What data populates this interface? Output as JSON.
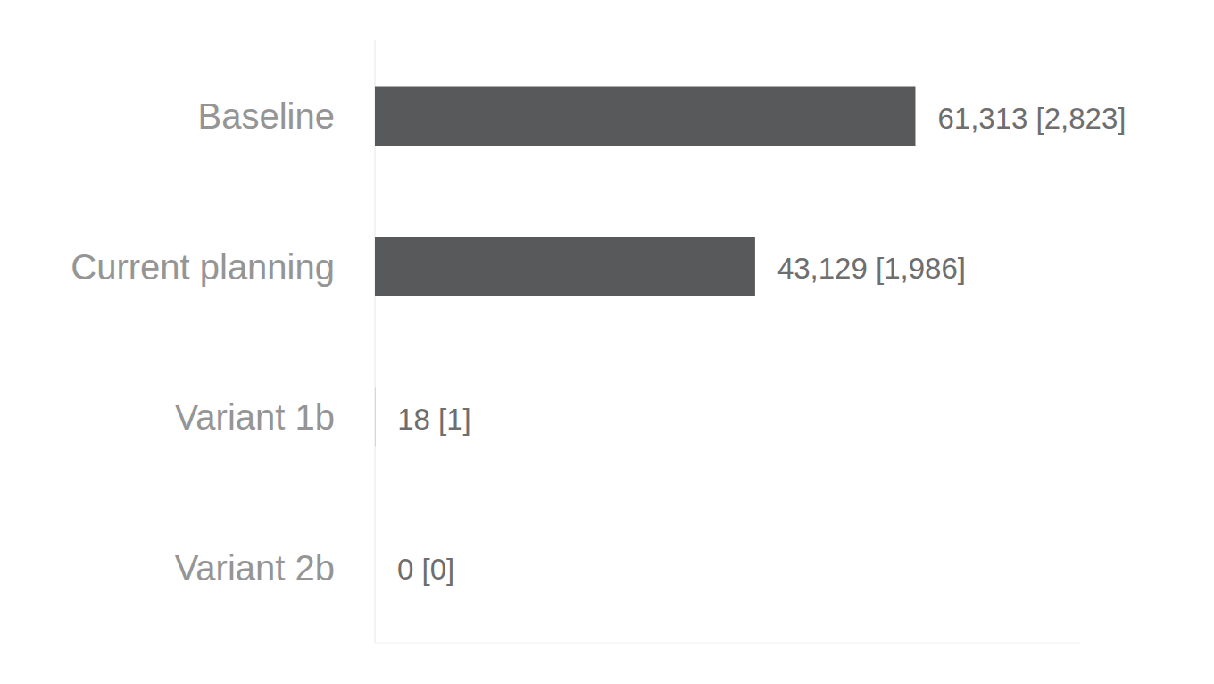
{
  "chart_data": {
    "type": "bar",
    "orientation": "horizontal",
    "categories": [
      "Baseline",
      "Current planning",
      "Variant 1b",
      "Variant 2b"
    ],
    "values": [
      61313,
      43129,
      18,
      0
    ],
    "value_labels": [
      "61,313 [2,823]",
      "43,129 [1,986]",
      "18 [1]",
      "0 [0]"
    ],
    "color": "#58595b",
    "xlim": [
      0,
      80000
    ],
    "grid": false,
    "data_labels": true,
    "tick_labels": "y"
  }
}
